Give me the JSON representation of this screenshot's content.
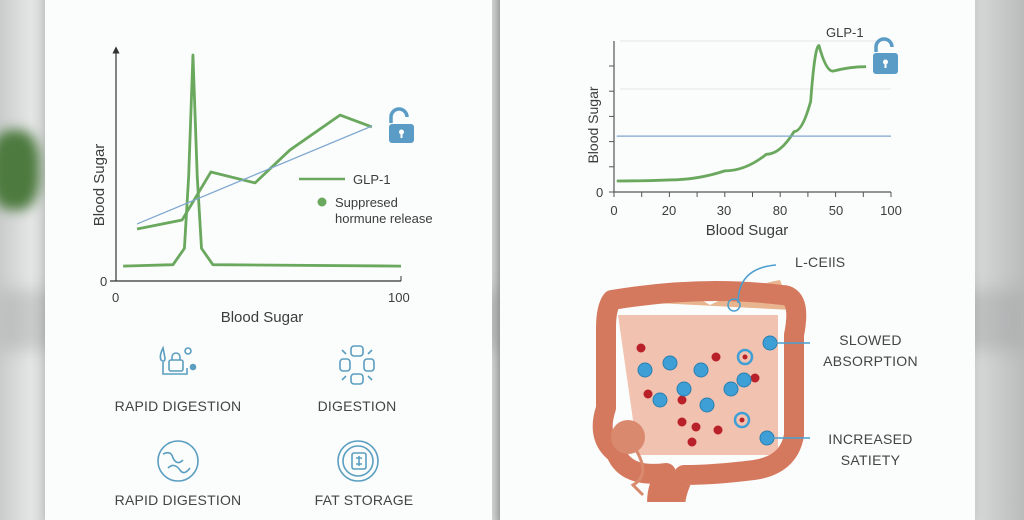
{
  "colors": {
    "green": "#6aa85e",
    "blue": "#7fa7cf",
    "lock": "#5b9cc6",
    "icon": "#5a9ec0",
    "red": "#b8202a",
    "cell_blue": "#3d9fd6",
    "tissue": "#d8886f"
  },
  "left_panel": {
    "legend": {
      "line_label": "GLP-1",
      "dot_label_line1": "Suppresed",
      "dot_label_line2": "hormune release"
    },
    "lock_icon": "unlocked-padlock-icon",
    "features": [
      {
        "label": "RAPID DIGESTION",
        "icon": "drop-lock-icon"
      },
      {
        "label": "DIGESTION",
        "icon": "cross-compress-icon"
      },
      {
        "label": "RAPID DIGESTION",
        "icon": "intestine-circle-icon"
      },
      {
        "label": "FAT STORAGE",
        "icon": "fat-cell-circle-icon"
      }
    ]
  },
  "right_panel": {
    "series_label": "GLP-1",
    "lock_icon": "unlocked-padlock-icon",
    "annotations": {
      "lcells": "L-CEIlS",
      "slowed_1": "SLOWED",
      "slowed_2": "ABSORPTION",
      "satiety_1": "INCREASED",
      "satiety_2": "SATIETY"
    }
  },
  "chart_data": [
    {
      "type": "line",
      "xlabel": "Blood Sugar",
      "ylabel": "Blood Sugar",
      "xlim": [
        0,
        100
      ],
      "ylim": [
        0,
        100
      ],
      "x_ticks": [
        "0",
        "100"
      ],
      "y_ticks": [
        "0"
      ],
      "grid": false,
      "legend": "right",
      "series": [
        {
          "name": "GLP-1",
          "color": "#6aa85e",
          "x": [
            7.4,
            23.2,
            33.3,
            48.8,
            61,
            78.6,
            89.8
          ],
          "y": [
            22.3,
            26.2,
            46.8,
            42.1,
            56.2,
            71.2,
            66.1
          ]
        },
        {
          "color": "#6aa85e",
          "x": [
            2.5,
            20,
            24,
            25.5,
            27,
            28.5,
            30,
            34,
            100
          ],
          "y": [
            6.4,
            7,
            14,
            45,
            97,
            45,
            14,
            7,
            6.4
          ]
        },
        {
          "color": "#7fa7cf",
          "x": [
            7.4,
            89.8
          ],
          "y": [
            24.5,
            66.5
          ]
        }
      ]
    },
    {
      "type": "line",
      "xlabel": "Blood Sugar",
      "ylabel": "Blood Sugar",
      "xlim": [
        0,
        100
      ],
      "ylim": [
        0,
        100
      ],
      "x_ticks": [
        "0",
        "20",
        "30",
        "80",
        "50",
        "100"
      ],
      "y_ticks": [
        "0"
      ],
      "grid": true,
      "series": [
        {
          "name": "GLP-1",
          "color": "#6aa85e",
          "x": [
            1,
            20,
            40,
            55,
            65,
            71,
            74,
            79,
            91
          ],
          "y": [
            7.3,
            8,
            14,
            25,
            40,
            60,
            97,
            80,
            83
          ]
        },
        {
          "color": "#7fa7cf",
          "x": [
            1,
            100
          ],
          "y": [
            37,
            37
          ]
        }
      ]
    }
  ]
}
